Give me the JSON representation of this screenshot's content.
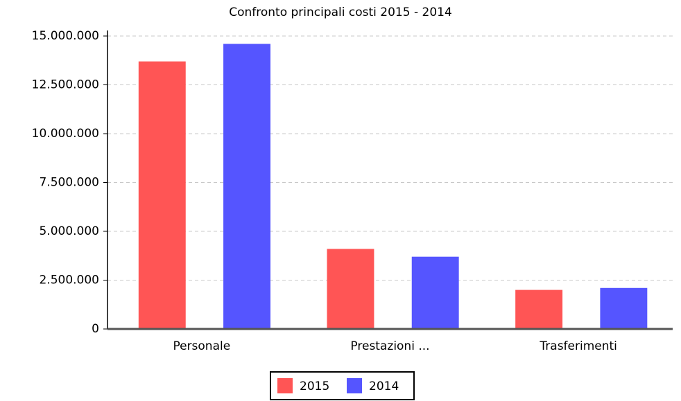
{
  "chart_data": {
    "type": "bar",
    "title": "Confronto principali costi 2015 - 2014",
    "categories": [
      "Personale",
      "Prestazioni ...",
      "Trasferimenti"
    ],
    "series": [
      {
        "name": "2015",
        "color": "#ff5555",
        "values": [
          13700000,
          4100000,
          2000000
        ]
      },
      {
        "name": "2014",
        "color": "#5555ff",
        "values": [
          14600000,
          3700000,
          2100000
        ]
      }
    ],
    "ylim": [
      0,
      15000000
    ],
    "yticks": [
      0,
      {
        "value": 2500000,
        "label": "2.500.000"
      },
      {
        "value": 5000000,
        "label": "5.000.000"
      },
      {
        "value": 7500000,
        "label": "7.500.000"
      },
      {
        "value": 10000000,
        "label": "10.000.000"
      },
      {
        "value": 12500000,
        "label": "12.500.000"
      },
      {
        "value": 15000000,
        "label": "15.000.000"
      }
    ],
    "grid": true,
    "legend": "bottom"
  }
}
